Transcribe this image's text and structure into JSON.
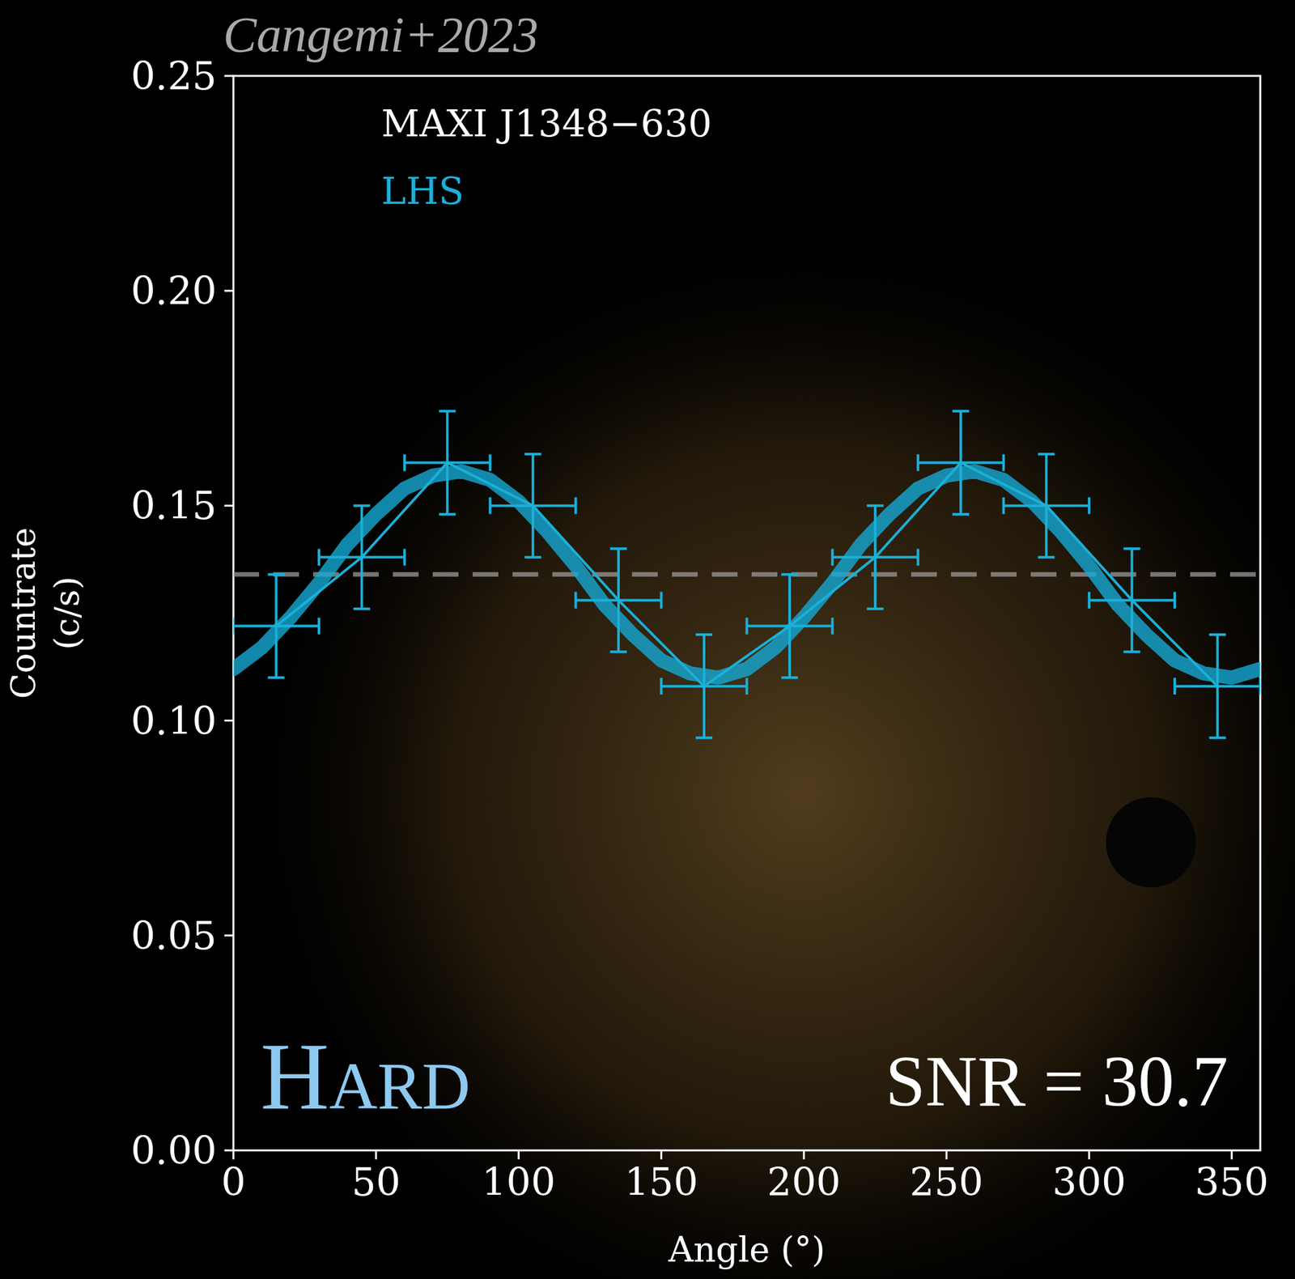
{
  "chart_data": {
    "type": "scatter",
    "citation": "Cangemi+2023",
    "title": "MAXI J1348−630",
    "xlabel": "Angle (°)",
    "ylabel": "Countrate (c/s)",
    "xlim": [
      0,
      360
    ],
    "ylim": [
      0,
      0.25
    ],
    "xticks": [
      0,
      50,
      100,
      150,
      200,
      250,
      300,
      350
    ],
    "yticks": [
      {
        "value": 0,
        "label": "0.00"
      },
      0.05,
      {
        "value": 0.1,
        "label": "0.10"
      },
      0.15,
      {
        "value": 0.2,
        "label": "0.20"
      },
      0.25
    ],
    "grid": false,
    "legend": "upper left",
    "series": [
      {
        "name": "LHS",
        "color": "#1ab0d8",
        "marker": "none",
        "line_style": "solid",
        "x": [
          15,
          45,
          75,
          105,
          135,
          165,
          195,
          225,
          255,
          285,
          315,
          345
        ],
        "x_errors": [
          15,
          15,
          15,
          15,
          15,
          15,
          15,
          15,
          15,
          15,
          15,
          15
        ],
        "values": [
          0.122,
          0.138,
          0.16,
          0.15,
          0.128,
          0.108,
          0.122,
          0.138,
          0.16,
          0.15,
          0.128,
          0.108
        ],
        "errors": [
          0.012,
          0.012,
          0.012,
          0.012,
          0.012,
          0.012,
          0.012,
          0.012,
          0.012,
          0.012,
          0.012,
          0.012
        ]
      }
    ],
    "model": {
      "color": "#15a9d4",
      "line_style": "solid",
      "x": [
        0,
        10,
        20,
        30,
        40,
        50,
        60,
        70,
        80,
        90,
        100,
        110,
        120,
        130,
        140,
        150,
        160,
        170,
        180,
        190,
        200,
        210,
        220,
        230,
        240,
        250,
        260,
        270,
        280,
        290,
        300,
        310,
        320,
        330,
        340,
        350,
        360
      ],
      "values": [
        0.112,
        0.117,
        0.124,
        0.132,
        0.141,
        0.148,
        0.154,
        0.157,
        0.158,
        0.156,
        0.151,
        0.144,
        0.136,
        0.127,
        0.12,
        0.114,
        0.111,
        0.11,
        0.112,
        0.117,
        0.124,
        0.132,
        0.141,
        0.148,
        0.154,
        0.157,
        0.158,
        0.156,
        0.151,
        0.144,
        0.136,
        0.127,
        0.12,
        0.114,
        0.111,
        0.11,
        0.112
      ]
    },
    "reference_line": {
      "value": 0.134,
      "color": "#9a9a9a",
      "line_style": "dashed"
    },
    "annotations": [
      {
        "text": "Hard",
        "color": "#8ec9f0"
      },
      {
        "text": "SNR = 30.7",
        "color": "#ffffff"
      }
    ]
  }
}
